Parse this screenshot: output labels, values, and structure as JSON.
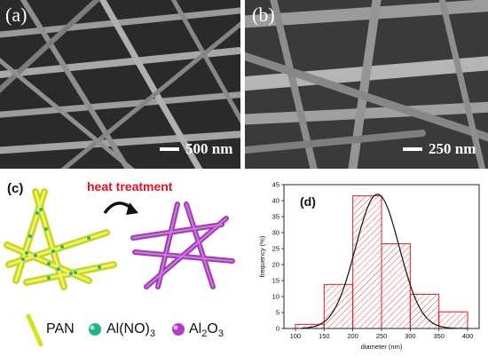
{
  "panel_a": {
    "label": "(a)",
    "scale": "500 nm"
  },
  "panel_b": {
    "label": "(b)",
    "scale": "250 nm"
  },
  "panel_c": {
    "label": "(c)",
    "heat_label": "heat treatment",
    "legend": [
      {
        "name": "PAN",
        "color": "#d6e21a"
      },
      {
        "name": "Al(NO)",
        "sub": "3",
        "color": "#1fb58a"
      },
      {
        "name": "Al",
        "sub": "2",
        "name2": "O",
        "sub2": "3",
        "color": "#b03cc0"
      }
    ]
  },
  "chart_data": {
    "type": "bar",
    "panel_label": "(d)",
    "categories": [
      "100-150",
      "150-200",
      "200-250",
      "250-300",
      "300-350",
      "350-400"
    ],
    "bin_edges": [
      100,
      150,
      200,
      250,
      300,
      350,
      400
    ],
    "values": [
      1.3,
      13.8,
      41.5,
      26.5,
      10.7,
      5.2
    ],
    "fit": {
      "type": "gaussian",
      "mean": 243,
      "sigma": 38,
      "peak": 42
    },
    "xlabel": "diameter (nm)",
    "ylabel": "frequency (%)",
    "xlim": [
      80,
      420
    ],
    "ylim": [
      0,
      45
    ],
    "xticks": [
      100,
      150,
      200,
      250,
      300,
      350,
      400
    ],
    "yticks": [
      0,
      5,
      10,
      15,
      20,
      25,
      30,
      35,
      40,
      45
    ],
    "bar_color": "#e02020",
    "grid": false
  }
}
